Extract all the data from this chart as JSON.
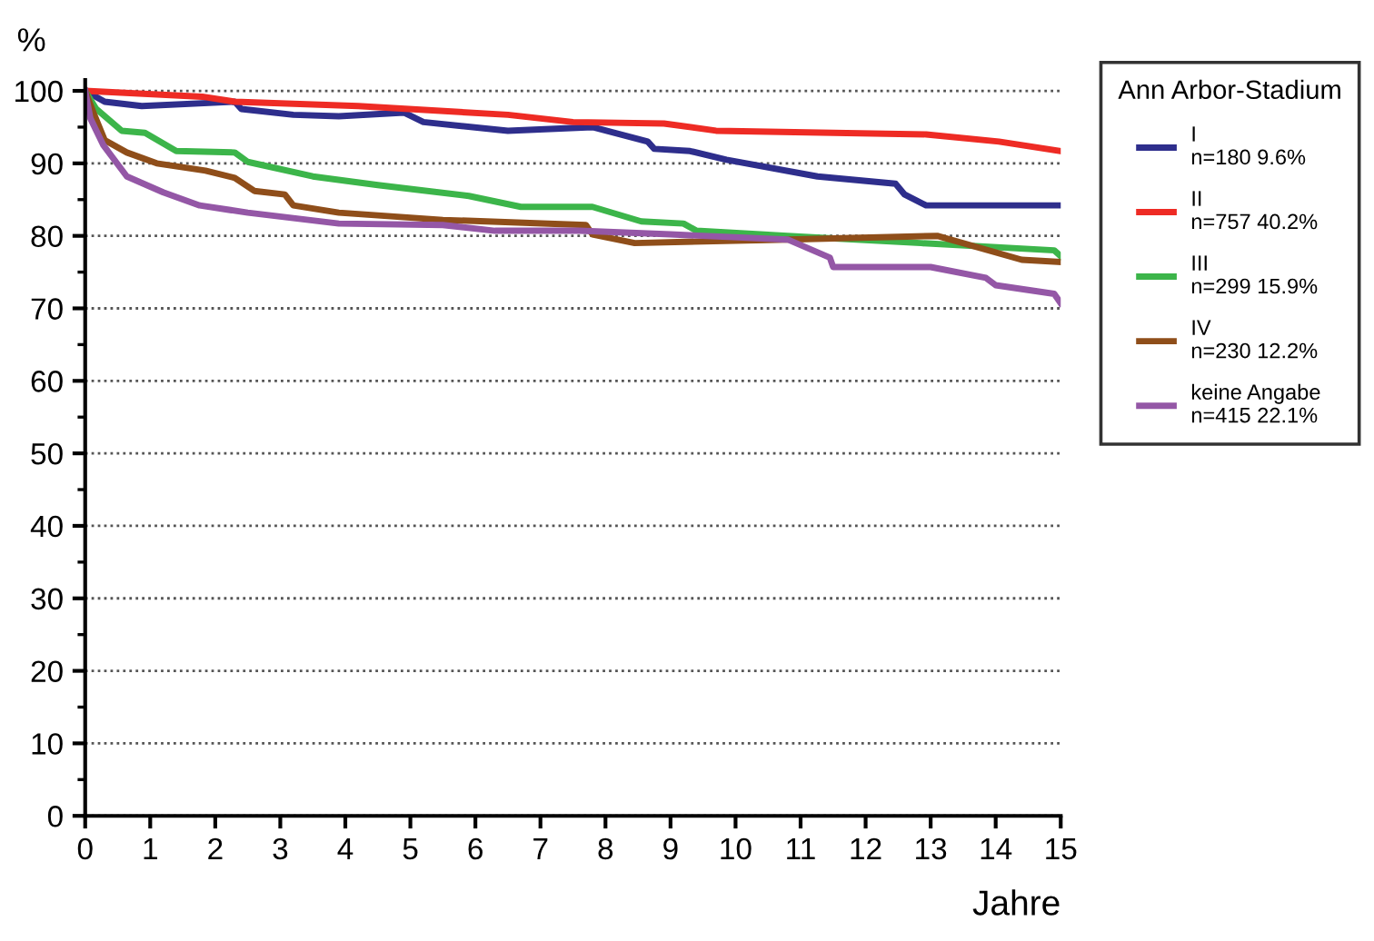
{
  "chart_data": {
    "type": "line",
    "ylabel": "%",
    "xlabel": "Jahre",
    "legend_title": "Ann Arbor-Stadium",
    "legend": "right",
    "grid": "y",
    "line_style": "solid",
    "marker": "none",
    "xlim": [
      0,
      15
    ],
    "ylim": [
      0,
      101.5
    ],
    "xticks": [
      0,
      1,
      2,
      3,
      4,
      5,
      6,
      7,
      8,
      9,
      10,
      11,
      12,
      13,
      14,
      15
    ],
    "yticks": [
      0,
      10,
      20,
      30,
      40,
      50,
      60,
      70,
      80,
      90,
      100
    ],
    "series": [
      {
        "name": "I\nn=180 9.6%",
        "color": "#2e2e8c",
        "x": [
          0,
          0.3,
          0.87,
          2.3,
          2.4,
          3.2,
          3.9,
          4.9,
          5.2,
          6.5,
          7.8,
          8.65,
          8.75,
          9.3,
          9.86,
          11.26,
          12.46,
          12.6,
          12.93,
          15
        ],
        "values": [
          100,
          98.5,
          97.9,
          98.5,
          97.5,
          96.7,
          96.5,
          97,
          95.7,
          94.5,
          95,
          93,
          92,
          91.7,
          90.5,
          88.2,
          87.2,
          85.7,
          84.2,
          84.2
        ]
      },
      {
        "name": "II\nn=757 40.2%",
        "color": "#ee2b24",
        "x": [
          0,
          1.8,
          2.3,
          4.2,
          6.5,
          7.5,
          8.9,
          9.7,
          12.93,
          14.05,
          15
        ],
        "values": [
          100,
          99.2,
          98.5,
          97.9,
          96.7,
          95.7,
          95.5,
          94.5,
          94,
          93,
          91.7
        ]
      },
      {
        "name": "III\nn=299 15.9%",
        "color": "#3cb54a",
        "x": [
          0,
          0.17,
          0.56,
          0.92,
          1.4,
          2.3,
          2.5,
          3.5,
          4.5,
          5.9,
          6.7,
          7.8,
          8.55,
          9.2,
          9.4,
          10.8,
          12.85,
          14.9,
          15
        ],
        "values": [
          100,
          97.5,
          94.5,
          94.2,
          91.7,
          91.5,
          90.2,
          88.2,
          87,
          85.5,
          84,
          84,
          82,
          81.7,
          80.7,
          80,
          79,
          78,
          77.2
        ]
      },
      {
        "name": "IV\nn=230 12.2%",
        "color": "#8f4e1a",
        "x": [
          0,
          0.14,
          0.3,
          0.64,
          1.1,
          1.85,
          2.3,
          2.6,
          3.07,
          3.2,
          3.9,
          5.5,
          7.7,
          7.8,
          8.45,
          10.8,
          13.1,
          14.4,
          15
        ],
        "values": [
          100,
          96.7,
          93.2,
          91.5,
          90,
          89,
          88,
          86.2,
          85.7,
          84.2,
          83.2,
          82.2,
          81.5,
          80.2,
          79,
          79.5,
          80,
          76.7,
          76.4
        ]
      },
      {
        "name": "keine Angabe\nn=415 22.1%",
        "color": "#9457a6",
        "x": [
          0,
          0.08,
          0.28,
          0.64,
          1.2,
          1.76,
          2.5,
          3.9,
          5.5,
          6.3,
          7.6,
          9.0,
          10.8,
          11.45,
          11.5,
          13,
          13.85,
          14,
          14.9,
          15
        ],
        "values": [
          100,
          96.2,
          92.5,
          88.2,
          86,
          84.2,
          83.2,
          81.7,
          81.5,
          80.7,
          80.7,
          80.2,
          79.5,
          77,
          75.7,
          75.7,
          74.2,
          73.2,
          72,
          70.7
        ]
      }
    ]
  }
}
